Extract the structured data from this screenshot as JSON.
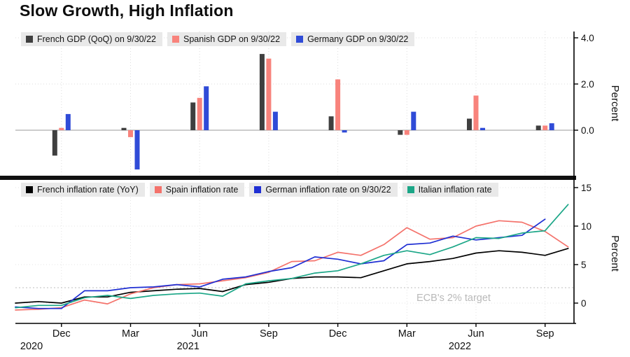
{
  "title": "Slow Growth, High Inflation",
  "colors": {
    "french_gdp": "#3f3f3f",
    "spanish_gdp": "#f8837c",
    "germany_gdp": "#2f4bd7",
    "french_inflation": "#000000",
    "spain_inflation": "#f4726b",
    "german_inflation": "#1f2fd3",
    "italian_inflation": "#1ba687"
  },
  "x_axis": {
    "ticks": [
      {
        "month": 2,
        "label": "Dec"
      },
      {
        "month": 5,
        "label": "Mar"
      },
      {
        "month": 8,
        "label": "Jun"
      },
      {
        "month": 11,
        "label": "Sep"
      },
      {
        "month": 14,
        "label": "Dec"
      },
      {
        "month": 17,
        "label": "Mar"
      },
      {
        "month": 20,
        "label": "Jun"
      },
      {
        "month": 23,
        "label": "Sep"
      }
    ],
    "year_labels": [
      {
        "month": 0.7,
        "label": "2020"
      },
      {
        "month": 7.5,
        "label": "2021"
      },
      {
        "month": 19.3,
        "label": "2022"
      }
    ]
  },
  "chart_data": [
    {
      "type": "bar",
      "panel": "top",
      "ylabel": "Percent",
      "ylim": [
        -2.1,
        4.35
      ],
      "yticks": [
        0,
        2,
        4
      ],
      "ytick_labels": [
        "0.0",
        "2.0",
        "4.0"
      ],
      "categories": [
        "Dec 2020",
        "Mar 2021",
        "Jun 2021",
        "Sep 2021",
        "Dec 2021",
        "Mar 2022",
        "Jun 2022",
        "Sep 2022"
      ],
      "month_indices": [
        2,
        5,
        8,
        11,
        14,
        17,
        20,
        23
      ],
      "series": [
        {
          "name": "French GDP (QoQ) on 9/30/22",
          "color_key": "french_gdp",
          "values": [
            -1.1,
            0.1,
            1.2,
            3.3,
            0.6,
            -0.2,
            0.5,
            0.2
          ]
        },
        {
          "name": "Spanish GDP on 9/30/22",
          "color_key": "spanish_gdp",
          "values": [
            0.1,
            -0.3,
            1.4,
            3.1,
            2.2,
            -0.2,
            1.5,
            0.2
          ]
        },
        {
          "name": "Germany GDP on 9/30/22",
          "color_key": "germany_gdp",
          "values": [
            0.7,
            -1.7,
            1.9,
            0.8,
            -0.1,
            0.8,
            0.1,
            0.3
          ]
        }
      ]
    },
    {
      "type": "line",
      "panel": "bottom",
      "ylabel": "Percent",
      "ylim": [
        -2.6,
        15.4
      ],
      "yticks": [
        0,
        5,
        10,
        15
      ],
      "ytick_labels": [
        "0",
        "5",
        "10",
        "15"
      ],
      "x_start_month": "Oct 2020",
      "x_end_month": "Oct 2022",
      "annotation": {
        "text": "ECB's 2% target",
        "value": 2
      },
      "series": [
        {
          "name": "French inflation rate (YoY)",
          "color_key": "french_inflation",
          "values": [
            0.0,
            0.2,
            0.0,
            0.8,
            0.8,
            1.4,
            1.6,
            1.8,
            1.9,
            1.5,
            2.4,
            2.7,
            3.2,
            3.4,
            3.4,
            3.3,
            4.2,
            5.1,
            5.4,
            5.8,
            6.5,
            6.8,
            6.6,
            6.2,
            7.1
          ]
        },
        {
          "name": "Spain inflation rate",
          "color_key": "spain_inflation",
          "values": [
            -0.9,
            -0.8,
            -0.6,
            0.4,
            -0.1,
            1.2,
            2.0,
            2.4,
            2.5,
            2.9,
            3.3,
            4.0,
            5.4,
            5.5,
            6.6,
            6.2,
            7.6,
            9.8,
            8.3,
            8.5,
            10.0,
            10.7,
            10.5,
            9.3,
            7.3
          ]
        },
        {
          "name": "German inflation rate on 9/30/22",
          "color_key": "german_inflation",
          "values": [
            -0.5,
            -0.7,
            -0.7,
            1.6,
            1.6,
            2.0,
            2.1,
            2.4,
            2.1,
            3.1,
            3.4,
            4.1,
            4.6,
            6.0,
            5.7,
            5.1,
            5.5,
            7.6,
            7.8,
            8.7,
            8.2,
            8.5,
            8.8,
            10.9
          ]
        },
        {
          "name": "Italian inflation rate",
          "color_key": "italian_inflation",
          "values": [
            -0.6,
            -0.3,
            -0.3,
            0.7,
            1.0,
            0.6,
            1.0,
            1.2,
            1.3,
            0.9,
            2.5,
            2.9,
            3.2,
            3.9,
            4.2,
            5.1,
            6.2,
            6.8,
            6.3,
            7.3,
            8.5,
            8.4,
            9.1,
            9.4,
            12.8
          ]
        }
      ]
    }
  ]
}
